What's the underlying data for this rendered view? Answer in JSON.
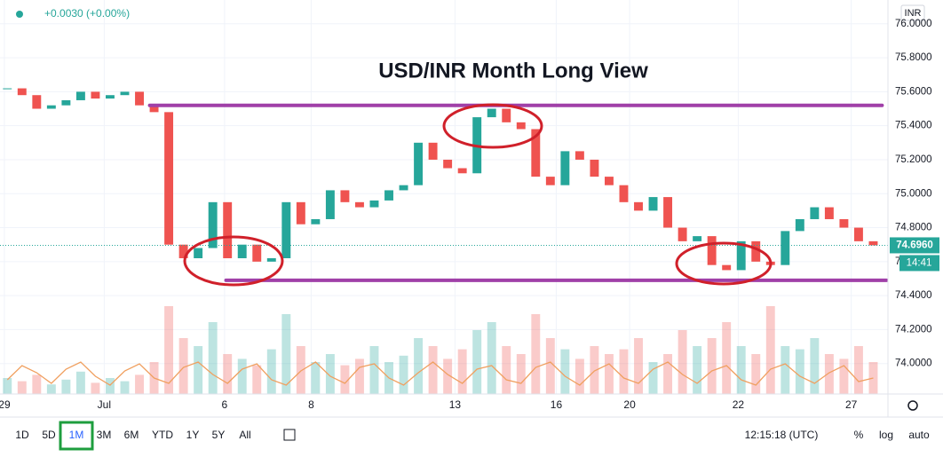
{
  "chart_data": {
    "type": "candlestick",
    "title": "USD/INR Month Long View",
    "change_label": "+0.0030 (+0.00%)",
    "currency": "INR",
    "x": [
      0,
      1,
      2,
      3,
      4,
      5,
      6,
      7,
      8,
      9,
      10,
      11,
      12,
      13,
      14,
      15,
      16,
      17,
      18,
      19,
      20,
      21,
      22,
      23,
      24,
      25,
      26,
      27,
      28,
      29,
      30,
      31,
      32,
      33,
      34,
      35,
      36,
      37,
      38,
      39,
      40,
      41,
      42,
      43,
      44,
      45,
      46,
      47,
      48,
      49,
      50,
      51,
      52,
      53,
      54,
      55,
      56,
      57,
      58,
      59
    ],
    "close": [
      75.62,
      75.58,
      75.5,
      75.52,
      75.55,
      75.6,
      75.56,
      75.58,
      75.6,
      75.52,
      75.48,
      74.7,
      74.62,
      74.68,
      74.95,
      74.62,
      74.7,
      74.6,
      74.62,
      74.95,
      74.82,
      74.85,
      75.02,
      74.95,
      74.92,
      74.96,
      75.02,
      75.05,
      75.3,
      75.2,
      75.15,
      75.12,
      75.45,
      75.5,
      75.42,
      75.38,
      75.1,
      75.05,
      75.25,
      75.2,
      75.1,
      75.05,
      74.95,
      74.9,
      74.98,
      74.8,
      74.72,
      74.75,
      74.58,
      74.55,
      74.72,
      74.6,
      74.58,
      74.78,
      74.85,
      74.92,
      74.85,
      74.8,
      74.72,
      74.696
    ],
    "volume": [
      10,
      8,
      12,
      6,
      9,
      14,
      7,
      10,
      8,
      12,
      20,
      55,
      35,
      30,
      45,
      25,
      22,
      18,
      28,
      50,
      30,
      20,
      25,
      18,
      22,
      30,
      20,
      24,
      35,
      30,
      22,
      28,
      40,
      45,
      30,
      25,
      50,
      35,
      28,
      22,
      30,
      25,
      28,
      35,
      20,
      25,
      40,
      30,
      35,
      45,
      30,
      25,
      55,
      30,
      28,
      35,
      25,
      22,
      30,
      20
    ],
    "oscillator": [
      30,
      70,
      50,
      20,
      60,
      80,
      40,
      15,
      55,
      75,
      35,
      20,
      65,
      80,
      45,
      20,
      60,
      75,
      30,
      15,
      55,
      80,
      40,
      20,
      65,
      75,
      35,
      15,
      50,
      80,
      45,
      20,
      60,
      70,
      30,
      20,
      65,
      80,
      40,
      15,
      55,
      75,
      35,
      20,
      60,
      80,
      45,
      20,
      55,
      70,
      30,
      15,
      60,
      75,
      40,
      20,
      50,
      70,
      25,
      35
    ],
    "up_color": "#26a69a",
    "down_color": "#ef5350",
    "oscillator_color": "#f0a060",
    "levels": [
      {
        "value": 75.52,
        "x": [
          9.7,
          59.6
        ]
      },
      {
        "value": 74.49,
        "x": [
          14.9,
          59.9
        ]
      }
    ],
    "level_color": "#a040a8",
    "current_price": {
      "value": 74.696,
      "label": "74.6960"
    },
    "countdown": "14:41",
    "xlim": [
      -0.5,
      60
    ],
    "ylim": [
      73.8,
      76.14
    ],
    "xticks": [
      {
        "value": -0.2,
        "label": "29"
      },
      {
        "value": 6.6,
        "label": "Jul"
      },
      {
        "value": 14.8,
        "label": "6"
      },
      {
        "value": 20.7,
        "label": "8"
      },
      {
        "value": 30.5,
        "label": "13"
      },
      {
        "value": 37.4,
        "label": "16"
      },
      {
        "value": 42.4,
        "label": "20"
      },
      {
        "value": 49.8,
        "label": "22"
      },
      {
        "value": 57.5,
        "label": "27"
      }
    ],
    "yticks": [
      {
        "value": 74.0,
        "label": "74.0000"
      },
      {
        "value": 74.2,
        "label": "74.2000"
      },
      {
        "value": 74.4,
        "label": "74.4000"
      },
      {
        "value": 74.6,
        "label": "74.6000"
      },
      {
        "value": 74.8,
        "label": "74.8000"
      },
      {
        "value": 75.0,
        "label": "75.0000"
      },
      {
        "value": 75.2,
        "label": "75.2000"
      },
      {
        "value": 75.4,
        "label": "75.4000"
      },
      {
        "value": 75.6,
        "label": "75.6000"
      },
      {
        "value": 75.8,
        "label": "75.8000"
      },
      {
        "value": 76.0,
        "label": "76.0000"
      }
    ],
    "grid": true
  },
  "toolbar": {
    "ranges": [
      "1D",
      "5D",
      "1M",
      "3M",
      "6M",
      "YTD",
      "1Y",
      "5Y",
      "All"
    ],
    "active": "1M",
    "clock": "12:15:18 (UTC)",
    "options": [
      "%",
      "log",
      "auto"
    ]
  }
}
